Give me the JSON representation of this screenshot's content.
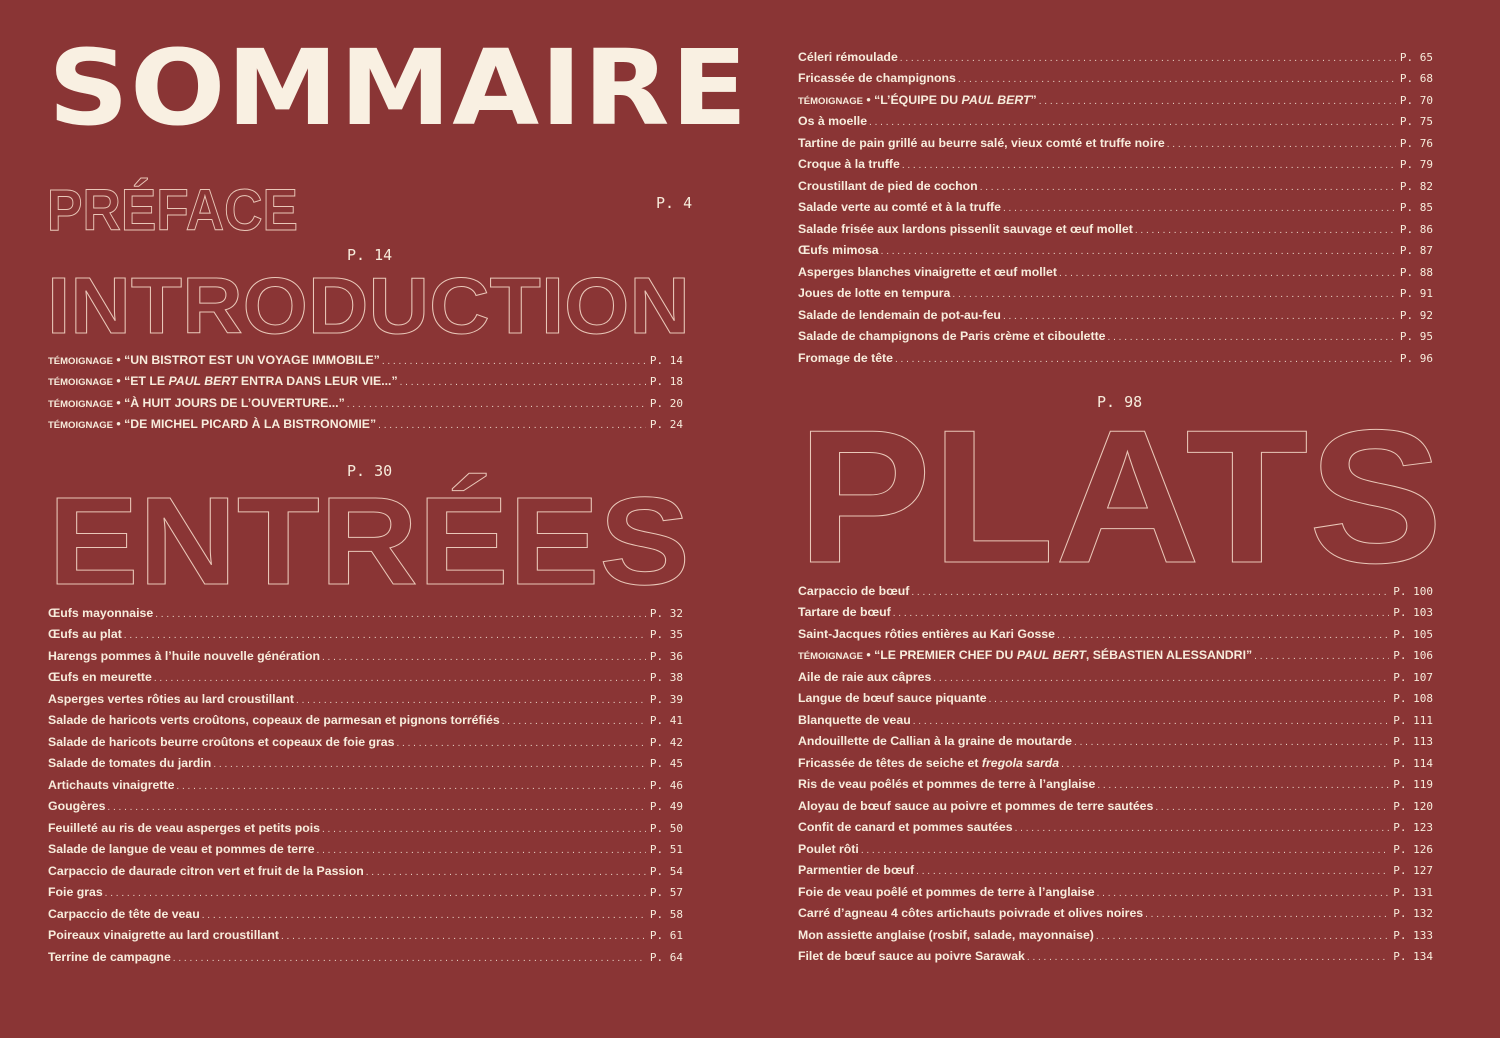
{
  "title": "SOMMAIRE",
  "colors": {
    "background": "#8a3535",
    "text": "#f7ecdc",
    "outline": "#e9c7b8"
  },
  "preface": {
    "heading": "PRÉFACE",
    "page": "P. 4"
  },
  "introduction": {
    "heading": "INTRODUCTION",
    "page": "P. 14",
    "items": [
      {
        "tag": "TÉMOIGNAGE",
        "parts": [
          {
            "t": "“UN BISTROT EST UN VOYAGE IMMOBILE”"
          }
        ],
        "page": "P. 14"
      },
      {
        "tag": "TÉMOIGNAGE",
        "parts": [
          {
            "t": "“ET LE "
          },
          {
            "t": "PAUL BERT",
            "i": true
          },
          {
            "t": " ENTRA DANS LEUR VIE...”"
          }
        ],
        "page": "P. 18"
      },
      {
        "tag": "TÉMOIGNAGE",
        "parts": [
          {
            "t": "“À HUIT JOURS DE L’OUVERTURE...”"
          }
        ],
        "page": "P. 20"
      },
      {
        "tag": "TÉMOIGNAGE",
        "parts": [
          {
            "t": "“DE MICHEL PICARD À LA BISTRONOMIE”"
          }
        ],
        "page": "P. 24"
      }
    ]
  },
  "entrees": {
    "heading": "ENTRÉES",
    "page": "P. 30",
    "items": [
      {
        "parts": [
          {
            "t": "Œufs mayonnaise"
          }
        ],
        "page": "P. 32"
      },
      {
        "parts": [
          {
            "t": "Œufs au plat"
          }
        ],
        "page": "P. 35"
      },
      {
        "parts": [
          {
            "t": "Harengs pommes à l’huile nouvelle génération"
          }
        ],
        "page": "P. 36"
      },
      {
        "parts": [
          {
            "t": "Œufs en meurette"
          }
        ],
        "page": "P. 38"
      },
      {
        "parts": [
          {
            "t": "Asperges vertes rôties au lard croustillant"
          }
        ],
        "page": "P. 39"
      },
      {
        "parts": [
          {
            "t": "Salade de haricots verts croûtons, copeaux de parmesan et pignons torréfiés"
          }
        ],
        "page": "P. 41"
      },
      {
        "parts": [
          {
            "t": "Salade de haricots beurre croûtons et copeaux de foie gras"
          }
        ],
        "page": "P. 42"
      },
      {
        "parts": [
          {
            "t": "Salade de tomates du jardin"
          }
        ],
        "page": "P. 45"
      },
      {
        "parts": [
          {
            "t": "Artichauts vinaigrette"
          }
        ],
        "page": "P. 46"
      },
      {
        "parts": [
          {
            "t": "Gougères"
          }
        ],
        "page": "P. 49"
      },
      {
        "parts": [
          {
            "t": "Feuilleté au ris de veau asperges et petits pois"
          }
        ],
        "page": "P. 50"
      },
      {
        "parts": [
          {
            "t": "Salade de langue de veau et pommes de terre"
          }
        ],
        "page": "P. 51"
      },
      {
        "parts": [
          {
            "t": "Carpaccio de daurade citron vert et fruit de la Passion"
          }
        ],
        "page": "P. 54"
      },
      {
        "parts": [
          {
            "t": "Foie gras"
          }
        ],
        "page": "P. 57"
      },
      {
        "parts": [
          {
            "t": "Carpaccio de tête de veau"
          }
        ],
        "page": "P. 58"
      },
      {
        "parts": [
          {
            "t": "Poireaux vinaigrette au lard croustillant"
          }
        ],
        "page": "P. 61"
      },
      {
        "parts": [
          {
            "t": "Terrine de campagne"
          }
        ],
        "page": "P. 64"
      }
    ],
    "continued": [
      {
        "parts": [
          {
            "t": "Céleri rémoulade"
          }
        ],
        "page": "P. 65"
      },
      {
        "parts": [
          {
            "t": "Fricassée de champignons"
          }
        ],
        "page": "P. 68"
      },
      {
        "tag": "TÉMOIGNAGE",
        "parts": [
          {
            "t": "“L’ÉQUIPE DU "
          },
          {
            "t": "PAUL BERT",
            "i": true
          },
          {
            "t": "”"
          }
        ],
        "page": "P. 70"
      },
      {
        "parts": [
          {
            "t": "Os à moelle"
          }
        ],
        "page": "P. 75"
      },
      {
        "parts": [
          {
            "t": "Tartine de pain grillé au beurre salé, vieux comté et truffe noire"
          }
        ],
        "page": "P. 76"
      },
      {
        "parts": [
          {
            "t": "Croque à la truffe"
          }
        ],
        "page": "P. 79"
      },
      {
        "parts": [
          {
            "t": "Croustillant de pied de cochon"
          }
        ],
        "page": "P. 82"
      },
      {
        "parts": [
          {
            "t": "Salade verte au comté et à la truffe"
          }
        ],
        "page": "P. 85"
      },
      {
        "parts": [
          {
            "t": "Salade frisée aux lardons pissenlit sauvage et œuf mollet"
          }
        ],
        "page": "P. 86"
      },
      {
        "parts": [
          {
            "t": "Œufs mimosa"
          }
        ],
        "page": "P. 87"
      },
      {
        "parts": [
          {
            "t": "Asperges blanches vinaigrette et œuf mollet"
          }
        ],
        "page": "P. 88"
      },
      {
        "parts": [
          {
            "t": "Joues de lotte en tempura"
          }
        ],
        "page": "P. 91"
      },
      {
        "parts": [
          {
            "t": "Salade de lendemain de pot-au-feu"
          }
        ],
        "page": "P. 92"
      },
      {
        "parts": [
          {
            "t": "Salade de champignons de Paris crème et ciboulette"
          }
        ],
        "page": "P. 95"
      },
      {
        "parts": [
          {
            "t": "Fromage de tête"
          }
        ],
        "page": "P. 96"
      }
    ]
  },
  "plats": {
    "heading": "PLATS",
    "page": "P. 98",
    "items": [
      {
        "parts": [
          {
            "t": "Carpaccio de bœuf"
          }
        ],
        "page": "P. 100"
      },
      {
        "parts": [
          {
            "t": "Tartare de bœuf"
          }
        ],
        "page": "P. 103"
      },
      {
        "parts": [
          {
            "t": "Saint-Jacques rôties entières au Kari Gosse"
          }
        ],
        "page": "P. 105"
      },
      {
        "tag": "TÉMOIGNAGE",
        "parts": [
          {
            "t": "“LE PREMIER CHEF DU "
          },
          {
            "t": "PAUL BERT",
            "i": true
          },
          {
            "t": ", SÉBASTIEN ALESSANDRI”"
          }
        ],
        "page": "P. 106"
      },
      {
        "parts": [
          {
            "t": "Aile de raie aux câpres"
          }
        ],
        "page": "P. 107"
      },
      {
        "parts": [
          {
            "t": "Langue de bœuf sauce piquante"
          }
        ],
        "page": "P. 108"
      },
      {
        "parts": [
          {
            "t": "Blanquette de veau"
          }
        ],
        "page": "P. 111"
      },
      {
        "parts": [
          {
            "t": "Andouillette de Callian à la graine de moutarde"
          }
        ],
        "page": "P. 113"
      },
      {
        "parts": [
          {
            "t": "Fricassée de têtes de seiche et "
          },
          {
            "t": "fregola sarda",
            "i": true
          }
        ],
        "page": "P. 114"
      },
      {
        "parts": [
          {
            "t": "Ris de veau poêlés et pommes de terre à l’anglaise"
          }
        ],
        "page": "P. 119"
      },
      {
        "parts": [
          {
            "t": "Aloyau de bœuf sauce au poivre et pommes de terre sautées"
          }
        ],
        "page": "P. 120"
      },
      {
        "parts": [
          {
            "t": "Confit de canard et pommes sautées"
          }
        ],
        "page": "P. 123"
      },
      {
        "parts": [
          {
            "t": "Poulet rôti"
          }
        ],
        "page": "P. 126"
      },
      {
        "parts": [
          {
            "t": "Parmentier de bœuf"
          }
        ],
        "page": "P. 127"
      },
      {
        "parts": [
          {
            "t": "Foie de veau poêlé et pommes de terre à l’anglaise"
          }
        ],
        "page": "P. 131"
      },
      {
        "parts": [
          {
            "t": "Carré d’agneau 4 côtes artichauts poivrade et olives noires"
          }
        ],
        "page": "P. 132"
      },
      {
        "parts": [
          {
            "t": "Mon assiette anglaise (rosbif, salade, mayonnaise)"
          }
        ],
        "page": "P. 133"
      },
      {
        "parts": [
          {
            "t": "Filet de bœuf sauce au poivre Sarawak"
          }
        ],
        "page": "P. 134"
      }
    ]
  }
}
